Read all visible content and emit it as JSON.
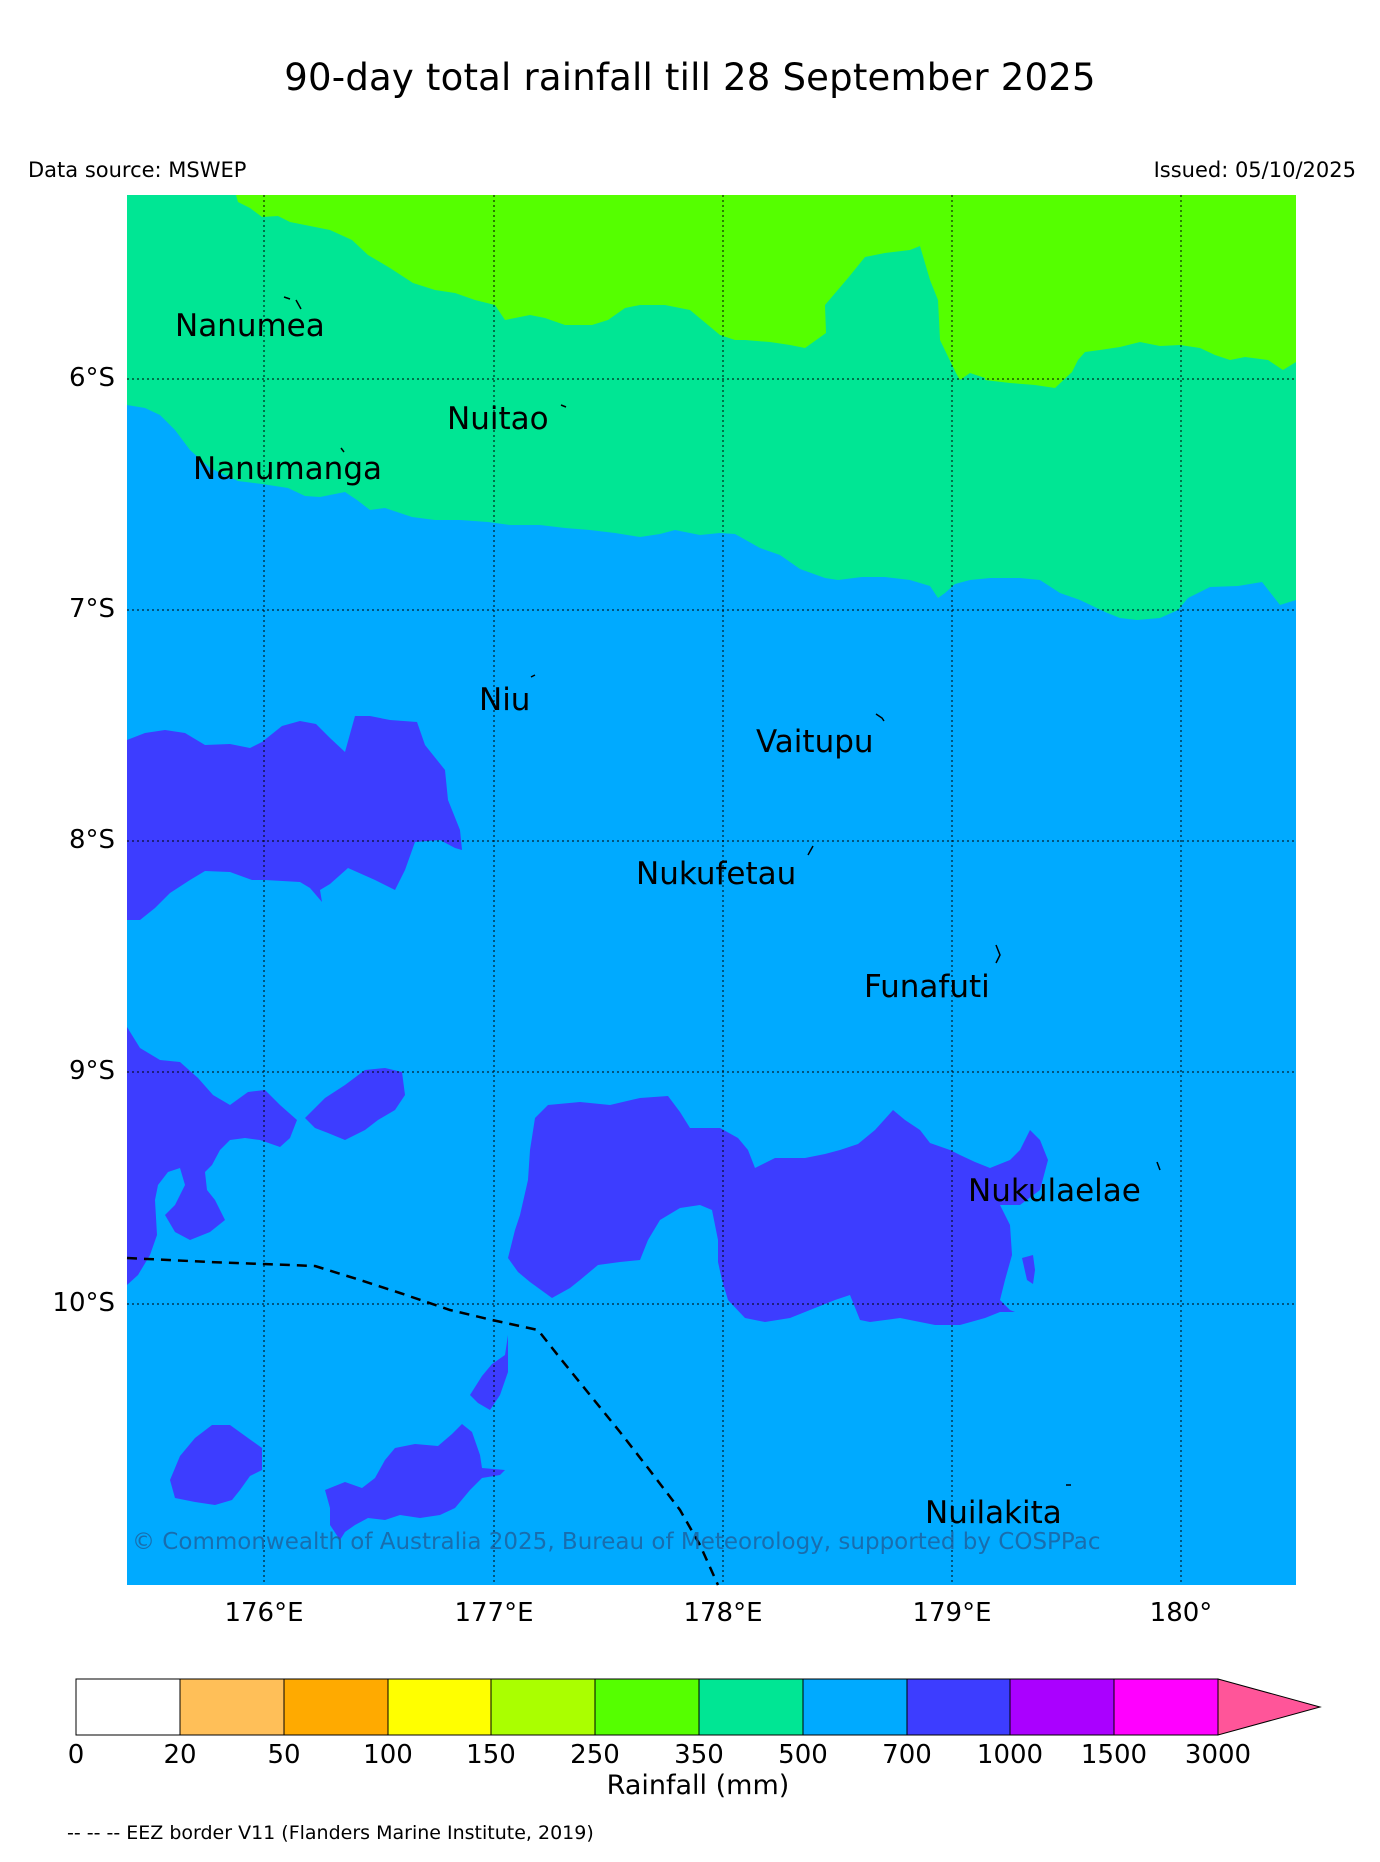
{
  "title": "90-day total rainfall till 28 September 2025",
  "data_source": "Data source: MSWEP",
  "issued": "Issued: 05/10/2025",
  "copyright": "© Commonwealth of Australia 2025, Bureau of Meteorology, supported by COSPPac",
  "footnote": "-- -- -- EEZ border V11 (Flanders Marine Institute, 2019)",
  "latitude_labels": [
    "6°S",
    "7°S",
    "8°S",
    "9°S",
    "10°S"
  ],
  "longitude_labels": [
    "176°E",
    "177°E",
    "178°E",
    "179°E",
    "180°"
  ],
  "islands": [
    "Nanumea",
    "Nuitao",
    "Nanumanga",
    "Niu",
    "Vaitupu",
    "Nukufetau",
    "Funafuti",
    "Nukulaelae",
    "Nuilakita"
  ],
  "colorbar": {
    "title": "Rainfall (mm)",
    "ticks": [
      "0",
      "20",
      "50",
      "100",
      "150",
      "250",
      "350",
      "500",
      "700",
      "1000",
      "1500",
      "3000"
    ],
    "colors": [
      "#ffffff",
      "#ffbf58",
      "#ffaa00",
      "#ffff00",
      "#aaff00",
      "#55ff00",
      "#00e694",
      "#00aaff",
      "#3d3dff",
      "#aa00ff",
      "#ff00ff",
      "#ff5599"
    ],
    "extend": "max"
  },
  "legend_colors": {
    "250-350": "#55ff00",
    "350-500": "#00e694",
    "500-700": "#00aaff",
    "700-1000": "#3d3dff"
  }
}
